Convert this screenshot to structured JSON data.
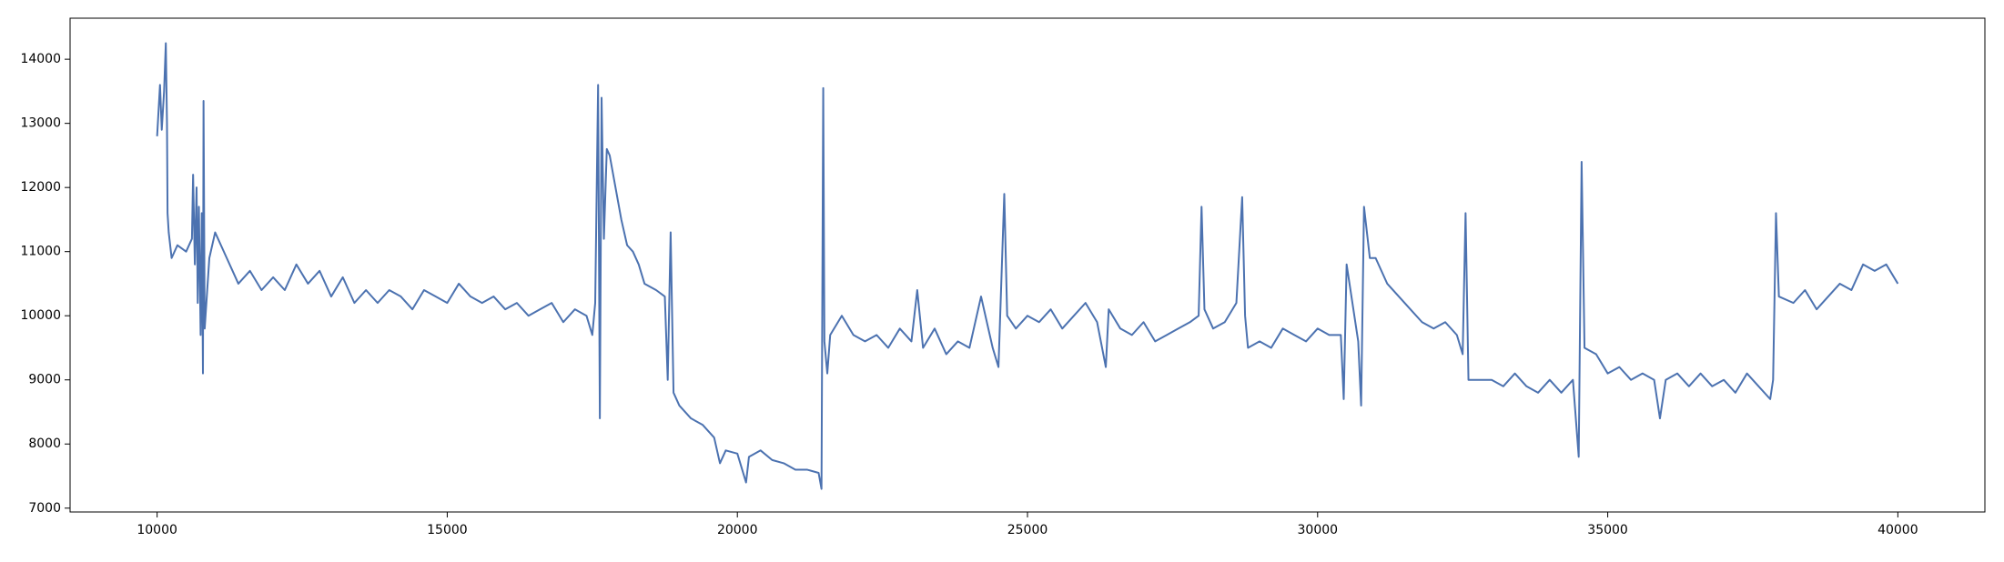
{
  "chart_data": {
    "type": "line",
    "color": "#4c72b0",
    "x": [
      10000,
      10050,
      10080,
      10120,
      10150,
      10170,
      10180,
      10200,
      10250,
      10350,
      10500,
      10600,
      10620,
      10650,
      10680,
      10700,
      10720,
      10750,
      10770,
      10790,
      10800,
      10820,
      10900,
      11000,
      11200,
      11400,
      11600,
      11800,
      12000,
      12200,
      12400,
      12600,
      12800,
      13000,
      13200,
      13400,
      13600,
      13800,
      14000,
      14200,
      14400,
      14600,
      14800,
      15000,
      15200,
      15400,
      15600,
      15800,
      16000,
      16200,
      16400,
      16600,
      16800,
      17000,
      17200,
      17400,
      17500,
      17550,
      17600,
      17630,
      17660,
      17700,
      17750,
      17800,
      17900,
      18000,
      18100,
      18200,
      18300,
      18400,
      18600,
      18750,
      18800,
      18850,
      18900,
      19000,
      19200,
      19400,
      19600,
      19700,
      19800,
      20000,
      20150,
      20200,
      20400,
      20600,
      20800,
      21000,
      21200,
      21400,
      21450,
      21480,
      21500,
      21550,
      21600,
      21800,
      22000,
      22200,
      22400,
      22600,
      22800,
      23000,
      23100,
      23200,
      23400,
      23600,
      23800,
      24000,
      24200,
      24400,
      24500,
      24600,
      24650,
      24800,
      25000,
      25200,
      25400,
      25600,
      25800,
      26000,
      26200,
      26350,
      26400,
      26600,
      26800,
      27000,
      27200,
      27400,
      27600,
      27800,
      27950,
      28000,
      28050,
      28200,
      28400,
      28600,
      28700,
      28750,
      28800,
      29000,
      29200,
      29400,
      29600,
      29800,
      30000,
      30200,
      30400,
      30450,
      30500,
      30600,
      30700,
      30750,
      30800,
      30900,
      31000,
      31200,
      31400,
      31600,
      31800,
      32000,
      32200,
      32400,
      32500,
      32550,
      32600,
      32800,
      33000,
      33200,
      33400,
      33600,
      33800,
      34000,
      34200,
      34400,
      34500,
      34550,
      34600,
      34800,
      35000,
      35200,
      35400,
      35600,
      35800,
      35900,
      36000,
      36200,
      36400,
      36600,
      36800,
      37000,
      37200,
      37400,
      37600,
      37800,
      37850,
      37900,
      37950,
      38200,
      38400,
      38600,
      38800,
      39000,
      39200,
      39400,
      39600,
      39800,
      40000
    ],
    "values": [
      12800,
      13600,
      12900,
      13500,
      14250,
      13000,
      11600,
      11300,
      10900,
      11100,
      11000,
      11200,
      12200,
      10800,
      12000,
      10200,
      11700,
      9700,
      11600,
      9100,
      13350,
      9800,
      10900,
      11300,
      10900,
      10500,
      10700,
      10400,
      10600,
      10400,
      10800,
      10500,
      10700,
      10300,
      10600,
      10200,
      10400,
      10200,
      10400,
      10300,
      10100,
      10400,
      10300,
      10200,
      10500,
      10300,
      10200,
      10300,
      10100,
      10200,
      10000,
      10100,
      10200,
      9900,
      10100,
      10000,
      9700,
      10200,
      13600,
      8400,
      13400,
      11200,
      12600,
      12500,
      12000,
      11500,
      11100,
      11000,
      10800,
      10500,
      10400,
      10300,
      9000,
      11300,
      8800,
      8600,
      8400,
      8300,
      8100,
      7700,
      7900,
      7850,
      7400,
      7800,
      7900,
      7750,
      7700,
      7600,
      7600,
      7550,
      7300,
      13550,
      9600,
      9100,
      9700,
      10000,
      9700,
      9600,
      9700,
      9500,
      9800,
      9600,
      10400,
      9500,
      9800,
      9400,
      9600,
      9500,
      10300,
      9500,
      9200,
      11900,
      10000,
      9800,
      10000,
      9900,
      10100,
      9800,
      10000,
      10200,
      9900,
      9200,
      10100,
      9800,
      9700,
      9900,
      9600,
      9700,
      9800,
      9900,
      10000,
      11700,
      10100,
      9800,
      9900,
      10200,
      11850,
      10000,
      9500,
      9600,
      9500,
      9800,
      9700,
      9600,
      9800,
      9700,
      9700,
      8700,
      10800,
      10200,
      9600,
      8600,
      11700,
      10900,
      10900,
      10500,
      10300,
      10100,
      9900,
      9800,
      9900,
      9700,
      9400,
      11600,
      9000,
      9000,
      9000,
      8900,
      9100,
      8900,
      8800,
      9000,
      8800,
      9000,
      7800,
      12400,
      9500,
      9400,
      9100,
      9200,
      9000,
      9100,
      9000,
      8400,
      9000,
      9100,
      8900,
      9100,
      8900,
      9000,
      8800,
      9100,
      8900,
      8700,
      9000,
      11600,
      10300,
      10200,
      10400,
      10100,
      10300,
      10500,
      10400,
      10800,
      10700,
      10800,
      10500
    ],
    "xlim": [
      8500,
      41500
    ],
    "xticks": [
      10000,
      15000,
      20000,
      25000,
      30000,
      35000,
      40000
    ],
    "ylim": [
      6940,
      14640
    ],
    "yticks": [
      7000,
      8000,
      9000,
      10000,
      11000,
      12000,
      13000,
      14000
    ]
  }
}
